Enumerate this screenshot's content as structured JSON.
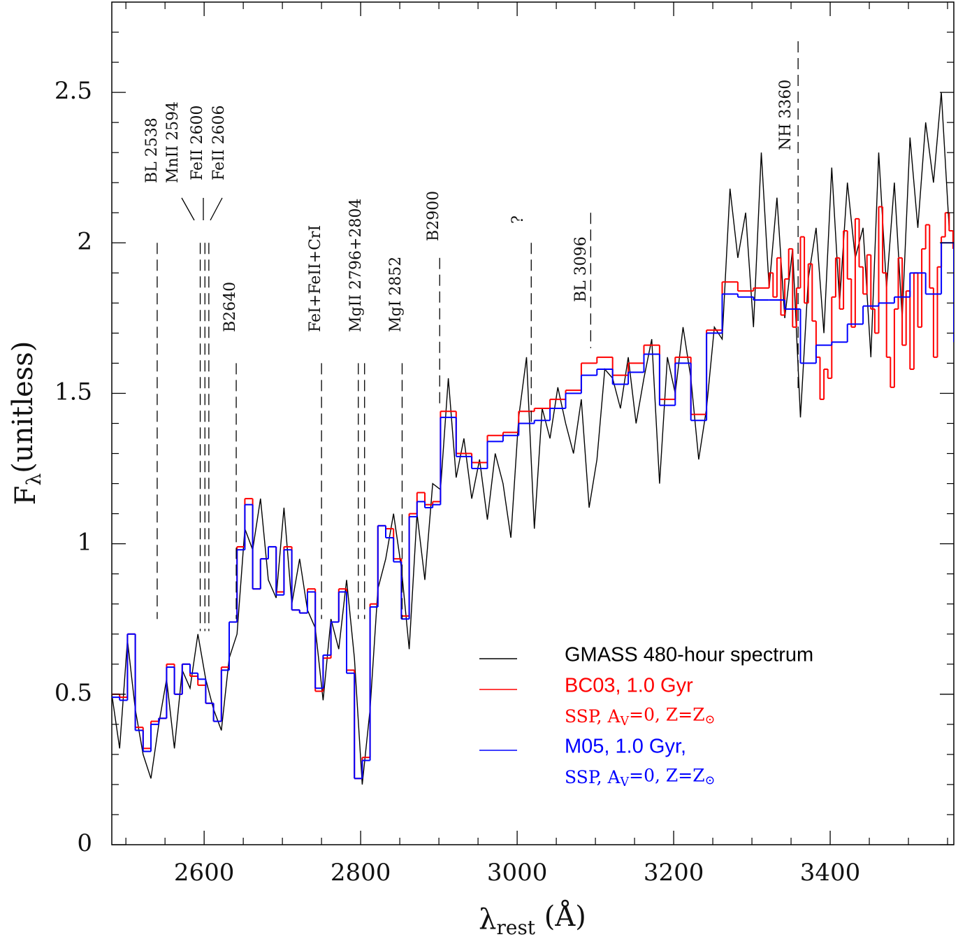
{
  "chart_data": {
    "type": "line",
    "xlabel": [
      "λ",
      "rest",
      " (Å)"
    ],
    "ylabel": [
      "F",
      "λ",
      "(unitless)"
    ],
    "xlim": [
      2482,
      3558
    ],
    "ylim": [
      0,
      2.8
    ],
    "xticks": [
      2600,
      2800,
      3000,
      3200,
      3400
    ],
    "xminorticks": [
      2500,
      2550,
      2650,
      2700,
      2750,
      2850,
      2900,
      2950,
      3050,
      3100,
      3150,
      3250,
      3300,
      3350,
      3450,
      3500,
      3550
    ],
    "yticks": [
      0,
      0.5,
      1,
      1.5,
      2,
      2.5
    ],
    "yminorticks": [
      0.1,
      0.2,
      0.3,
      0.4,
      0.6,
      0.7,
      0.8,
      0.9,
      1.1,
      1.2,
      1.3,
      1.4,
      1.6,
      1.7,
      1.8,
      1.9,
      2.1,
      2.2,
      2.3,
      2.4,
      2.6,
      2.7
    ],
    "series": [
      {
        "name": "GMASS 480-hour spectrum",
        "color": "#000000",
        "drawstyle": "line",
        "x": [
          2482,
          2492,
          2502,
          2512,
          2522,
          2532,
          2542,
          2552,
          2562,
          2572,
          2582,
          2592,
          2602,
          2612,
          2622,
          2632,
          2642,
          2652,
          2662,
          2672,
          2682,
          2692,
          2702,
          2712,
          2722,
          2732,
          2742,
          2752,
          2762,
          2772,
          2782,
          2792,
          2802,
          2812,
          2822,
          2832,
          2842,
          2852,
          2862,
          2872,
          2882,
          2892,
          2902,
          2912,
          2922,
          2932,
          2942,
          2952,
          2962,
          2972,
          2982,
          2992,
          3002,
          3012,
          3022,
          3032,
          3042,
          3052,
          3062,
          3072,
          3082,
          3092,
          3102,
          3112,
          3122,
          3132,
          3142,
          3152,
          3162,
          3172,
          3182,
          3192,
          3202,
          3212,
          3222,
          3232,
          3242,
          3252,
          3262,
          3272,
          3282,
          3292,
          3302,
          3312,
          3322,
          3332,
          3342,
          3352,
          3362,
          3372,
          3382,
          3392,
          3402,
          3412,
          3422,
          3432,
          3442,
          3452,
          3462,
          3472,
          3482,
          3492,
          3502,
          3512,
          3522,
          3532,
          3542,
          3552
        ],
        "values": [
          0.5,
          0.32,
          0.68,
          0.45,
          0.3,
          0.22,
          0.4,
          0.55,
          0.32,
          0.58,
          0.52,
          0.7,
          0.55,
          0.45,
          0.38,
          0.62,
          0.7,
          1.05,
          0.98,
          1.15,
          0.88,
          0.82,
          1.12,
          0.8,
          0.95,
          0.78,
          0.72,
          0.48,
          0.75,
          0.65,
          0.88,
          0.62,
          0.2,
          0.45,
          0.85,
          0.95,
          1.1,
          0.92,
          0.65,
          1.1,
          0.88,
          1.2,
          1.18,
          1.55,
          1.22,
          1.35,
          1.15,
          1.28,
          1.08,
          1.3,
          1.2,
          1.02,
          1.42,
          1.62,
          1.05,
          1.45,
          1.35,
          1.52,
          1.4,
          1.3,
          1.48,
          1.12,
          1.28,
          1.58,
          1.55,
          1.45,
          1.62,
          1.4,
          1.55,
          1.68,
          1.2,
          1.62,
          1.5,
          1.72,
          1.55,
          1.28,
          1.45,
          1.72,
          1.68,
          2.18,
          1.95,
          2.1,
          1.72,
          2.3,
          1.85,
          2.15,
          1.75,
          1.98,
          1.42,
          1.88,
          2.05,
          1.7,
          2.25,
          1.8,
          2.2,
          1.95,
          2.05,
          1.62,
          2.3,
          1.85,
          2.2,
          1.75,
          2.35,
          2.05,
          2.4,
          2.2,
          2.5,
          2.05
        ]
      },
      {
        "name": "BC03, 1.0 Gyr",
        "note": [
          "SSP, A",
          "V",
          "=0, Z=Z",
          "⊙"
        ],
        "color": "#ff0000",
        "drawstyle": "steps-post",
        "x": [
          2482,
          2492,
          2502,
          2512,
          2522,
          2532,
          2542,
          2552,
          2562,
          2572,
          2582,
          2592,
          2602,
          2612,
          2622,
          2632,
          2642,
          2652,
          2662,
          2672,
          2682,
          2692,
          2702,
          2712,
          2722,
          2732,
          2742,
          2752,
          2762,
          2772,
          2782,
          2792,
          2802,
          2812,
          2822,
          2832,
          2842,
          2852,
          2862,
          2872,
          2882,
          2892,
          2902,
          2922,
          2942,
          2962,
          2982,
          3002,
          3022,
          3042,
          3062,
          3082,
          3102,
          3122,
          3142,
          3162,
          3182,
          3202,
          3222,
          3242,
          3262,
          3282,
          3302,
          3322,
          3327,
          3332,
          3337,
          3342,
          3347,
          3352,
          3357,
          3362,
          3367,
          3372,
          3377,
          3382,
          3387,
          3392,
          3397,
          3402,
          3407,
          3412,
          3417,
          3422,
          3427,
          3432,
          3437,
          3442,
          3447,
          3452,
          3457,
          3462,
          3467,
          3472,
          3477,
          3482,
          3487,
          3492,
          3497,
          3502,
          3507,
          3512,
          3517,
          3522,
          3527,
          3532,
          3537,
          3542,
          3547,
          3552,
          3557
        ],
        "values": [
          0.5,
          0.49,
          0.7,
          0.39,
          0.32,
          0.41,
          0.42,
          0.6,
          0.5,
          0.6,
          0.56,
          0.53,
          0.47,
          0.41,
          0.59,
          0.74,
          0.99,
          1.15,
          0.85,
          0.95,
          0.99,
          0.84,
          0.99,
          0.78,
          0.77,
          0.85,
          0.51,
          0.62,
          0.74,
          0.85,
          0.58,
          0.22,
          0.29,
          0.8,
          1.06,
          1.05,
          0.95,
          0.76,
          1.1,
          1.17,
          1.13,
          1.14,
          1.44,
          1.3,
          1.27,
          1.36,
          1.37,
          1.44,
          1.45,
          1.48,
          1.51,
          1.6,
          1.62,
          1.56,
          1.6,
          1.66,
          1.48,
          1.62,
          1.43,
          1.71,
          1.87,
          1.84,
          1.85,
          1.9,
          1.82,
          1.95,
          1.76,
          1.88,
          1.98,
          1.72,
          1.85,
          2.02,
          1.8,
          1.93,
          1.74,
          1.62,
          1.48,
          1.58,
          1.55,
          1.82,
          1.95,
          1.78,
          2.04,
          1.88,
          1.72,
          2.08,
          1.92,
          1.83,
          1.96,
          1.78,
          1.7,
          2.12,
          1.9,
          1.62,
          1.52,
          1.78,
          1.95,
          1.66,
          1.84,
          1.58,
          1.9,
          1.72,
          1.98,
          2.06,
          1.85,
          1.62,
          1.92,
          2.02,
          2.1,
          2.04,
          1.98
        ]
      },
      {
        "name": "M05, 1.0 Gyr,",
        "note": [
          "SSP, A",
          "V",
          "=0, Z=Z",
          "⊙"
        ],
        "color": "#0000ff",
        "drawstyle": "steps-post",
        "x": [
          2482,
          2492,
          2502,
          2512,
          2522,
          2532,
          2542,
          2552,
          2562,
          2572,
          2582,
          2592,
          2602,
          2612,
          2622,
          2632,
          2642,
          2652,
          2662,
          2672,
          2682,
          2692,
          2702,
          2712,
          2722,
          2732,
          2742,
          2752,
          2762,
          2772,
          2782,
          2792,
          2802,
          2812,
          2822,
          2832,
          2842,
          2852,
          2862,
          2872,
          2882,
          2892,
          2902,
          2922,
          2942,
          2962,
          2982,
          3002,
          3022,
          3042,
          3062,
          3082,
          3102,
          3122,
          3142,
          3162,
          3182,
          3202,
          3222,
          3242,
          3262,
          3282,
          3302,
          3322,
          3342,
          3362,
          3382,
          3402,
          3422,
          3442,
          3462,
          3482,
          3502,
          3522,
          3542,
          3558
        ],
        "values": [
          0.49,
          0.48,
          0.7,
          0.38,
          0.31,
          0.4,
          0.42,
          0.59,
          0.5,
          0.6,
          0.57,
          0.55,
          0.47,
          0.41,
          0.58,
          0.74,
          0.98,
          1.13,
          0.85,
          0.95,
          0.99,
          0.83,
          0.98,
          0.78,
          0.77,
          0.84,
          0.52,
          0.63,
          0.74,
          0.84,
          0.57,
          0.22,
          0.28,
          0.79,
          1.06,
          1.02,
          0.94,
          0.75,
          1.09,
          1.14,
          1.12,
          1.13,
          1.42,
          1.29,
          1.25,
          1.34,
          1.36,
          1.4,
          1.41,
          1.45,
          1.5,
          1.56,
          1.58,
          1.53,
          1.57,
          1.63,
          1.46,
          1.6,
          1.41,
          1.7,
          1.83,
          1.82,
          1.81,
          1.81,
          1.78,
          1.6,
          1.66,
          1.67,
          1.73,
          1.79,
          1.8,
          1.82,
          1.9,
          1.83,
          2.0,
          1.67
        ]
      }
    ],
    "annotations": [
      {
        "text": "BL 2538",
        "x": [
          2540
        ],
        "top": 2.0,
        "bottom": 0.75
      },
      {
        "text": "MnII 2594",
        "x": [
          2595
        ],
        "top": 2.0,
        "bottom": 0.71
      },
      {
        "text": "FeII 2600",
        "x": [
          2601
        ],
        "top": 2.0,
        "bottom": 0.71
      },
      {
        "text": "FeII 2606",
        "x": [
          2606
        ],
        "top": 2.0,
        "bottom": 0.71
      },
      {
        "text": "B2640",
        "x": [
          2641
        ],
        "top": 1.6,
        "bottom": 0.75
      },
      {
        "text": "FeI+FeII+CrI",
        "x": [
          2750
        ],
        "top": 1.6,
        "bottom": 0.75
      },
      {
        "text": "MgII 2796+2804",
        "x": [
          2797,
          2805
        ],
        "top": 1.6,
        "bottom": 0.75
      },
      {
        "text": "MgI 2852",
        "x": [
          2853
        ],
        "top": 1.6,
        "bottom": 0.75
      },
      {
        "text": "B2900",
        "x": [
          2901
        ],
        "top": 1.95,
        "bottom": 1.45
      },
      {
        "text": "?",
        "x": [
          3018
        ],
        "top": 2.0,
        "bottom": 1.39
      },
      {
        "text": "BL 3096",
        "x": [
          3094
        ],
        "top": 2.1,
        "bottom": 1.65
      },
      {
        "text": "NH 3360",
        "x": [
          3359
        ],
        "top": 2.67,
        "bottom": 1.5
      }
    ]
  }
}
